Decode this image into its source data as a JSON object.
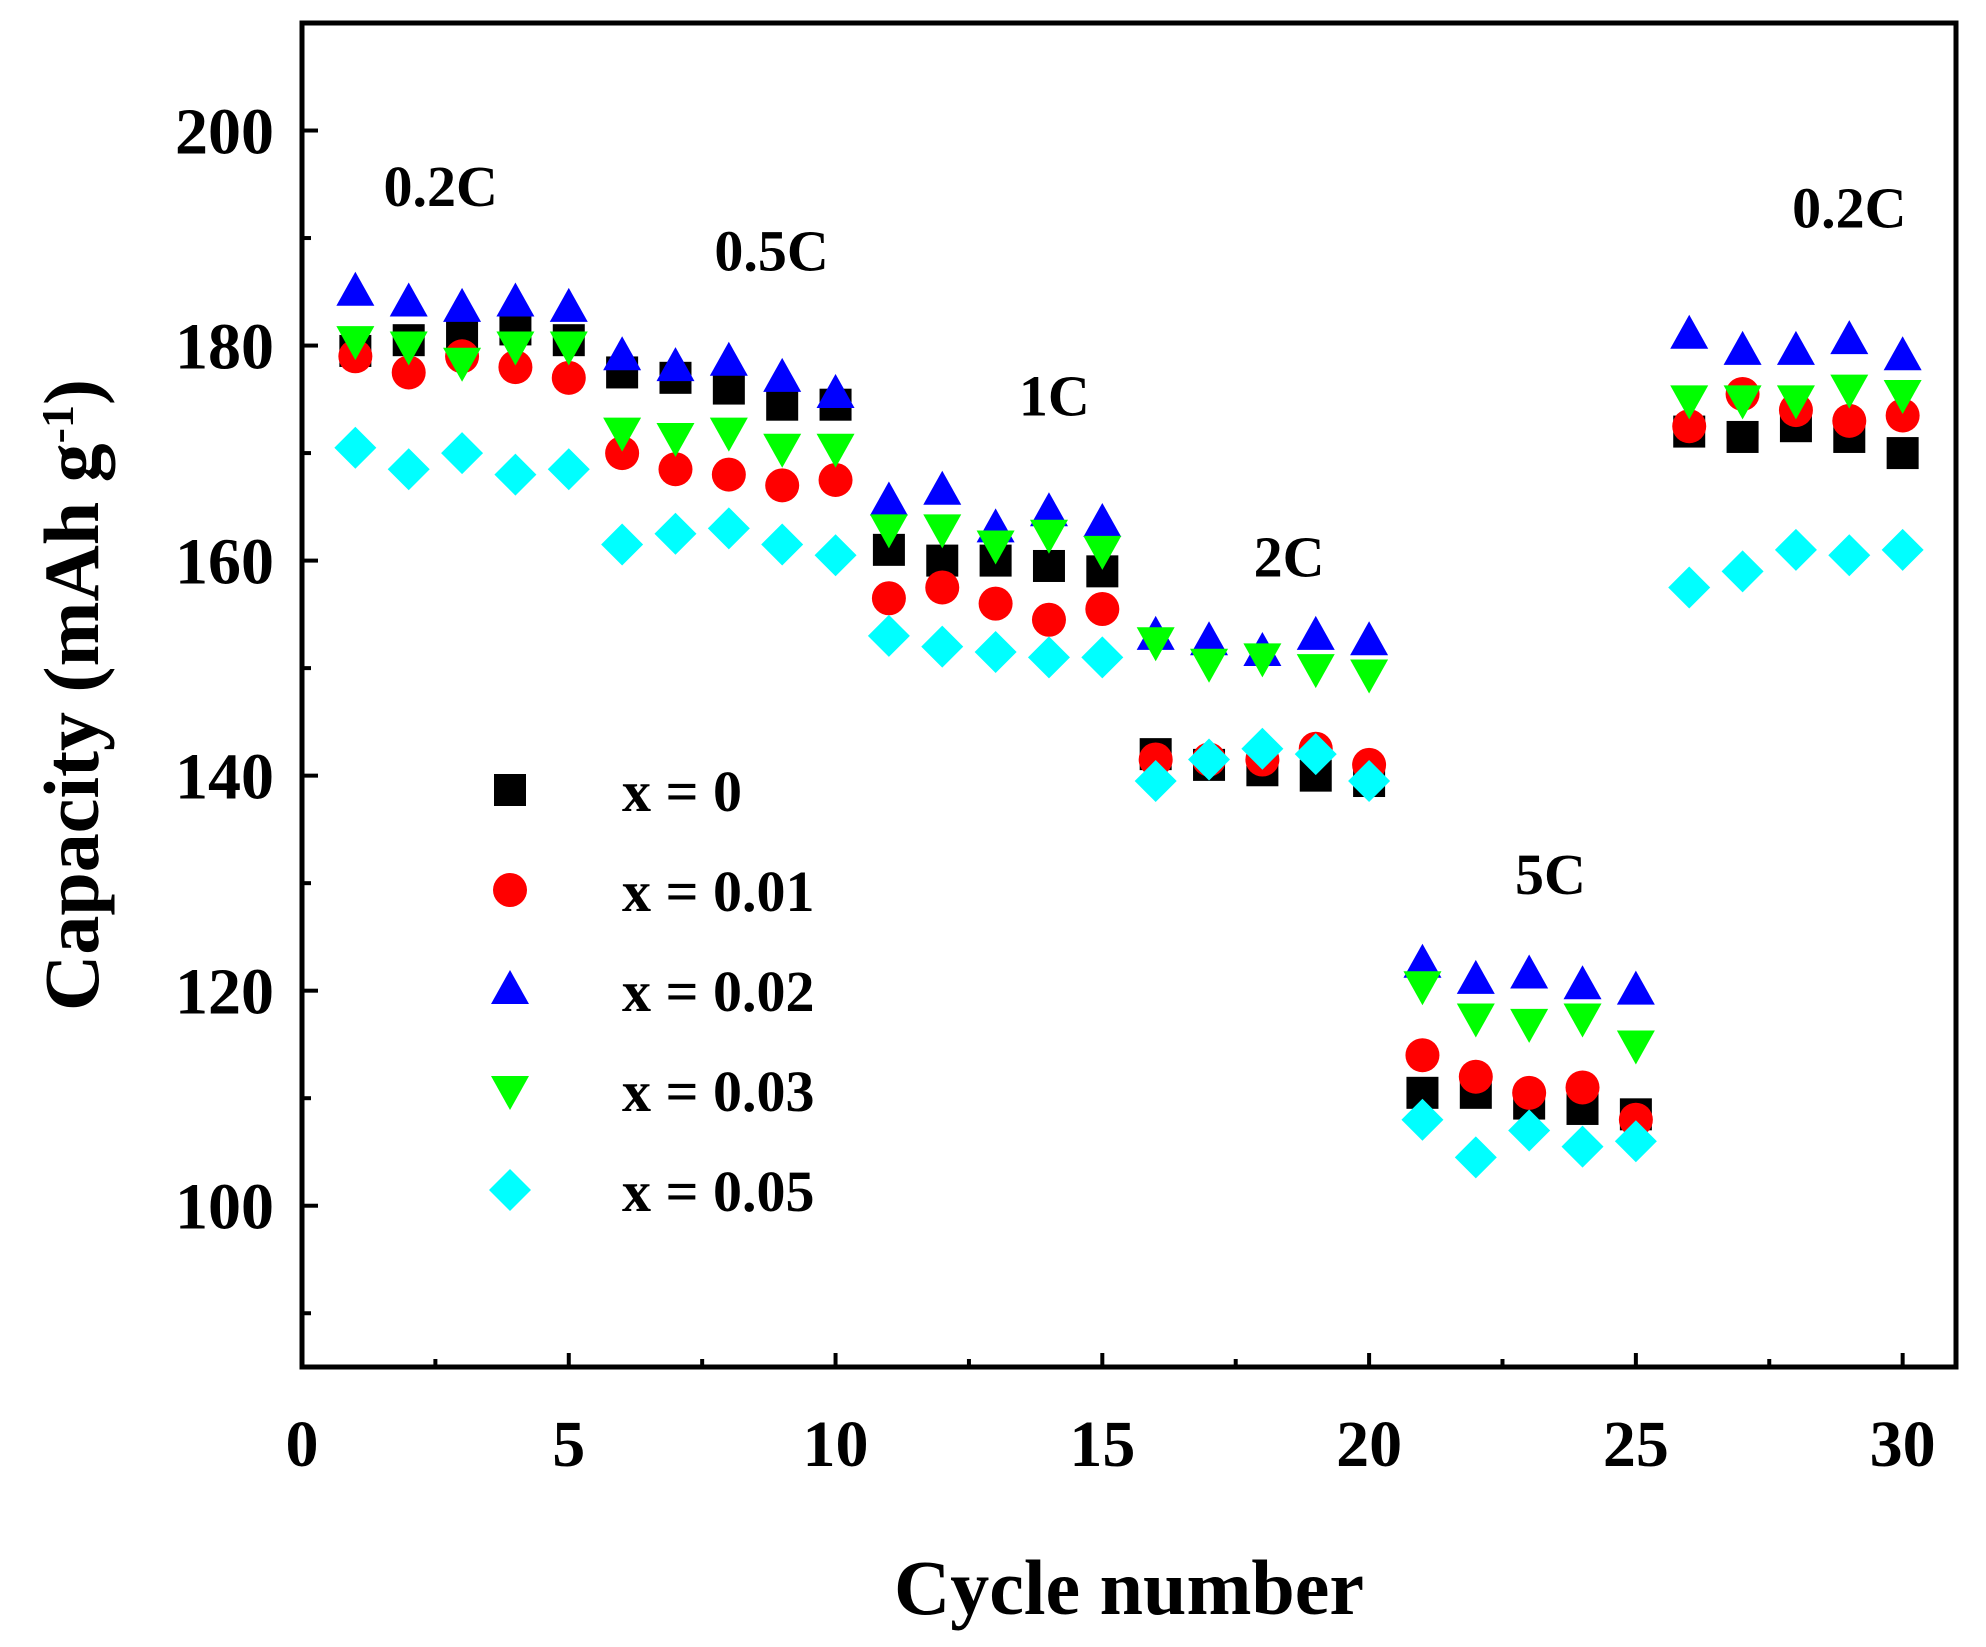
{
  "chart_data": {
    "type": "scatter",
    "title": "",
    "xlabel": "Cycle number",
    "ylabel": {
      "main": "Capacity (mAh g",
      "sup": "-1",
      "close": ")"
    },
    "xlim": [
      0,
      31
    ],
    "ylim": [
      85,
      210
    ],
    "xticks": [
      0,
      5,
      10,
      15,
      20,
      25,
      30
    ],
    "xtick_labels": [
      "0",
      "5",
      "10",
      "15",
      "20",
      "25",
      "30"
    ],
    "yticks": [
      100,
      120,
      140,
      160,
      180,
      200
    ],
    "ytick_labels": [
      "100",
      "120",
      "140",
      "160",
      "180",
      "200"
    ],
    "grid": false,
    "legend_position": "left-center",
    "x": [
      1,
      2,
      3,
      4,
      5,
      6,
      7,
      8,
      9,
      10,
      11,
      12,
      13,
      14,
      15,
      16,
      17,
      18,
      19,
      20,
      21,
      22,
      23,
      24,
      25,
      26,
      27,
      28,
      29,
      30
    ],
    "series": [
      {
        "name": "x = 0",
        "marker": "square",
        "color": "#000000",
        "values": [
          179.5,
          180.5,
          181,
          181.5,
          180.5,
          177.5,
          177,
          176,
          174.5,
          174.5,
          161,
          160,
          160,
          159.5,
          159,
          142,
          141,
          140.5,
          140,
          139.5,
          110.5,
          110.5,
          109.5,
          109,
          108.5,
          172,
          171.5,
          172.5,
          171.5,
          170
        ]
      },
      {
        "name": "x = 0.01",
        "marker": "circle",
        "color": "#ff0000",
        "values": [
          179,
          177.5,
          179,
          178,
          177,
          170,
          168.5,
          168,
          167,
          167.5,
          156.5,
          157.5,
          156,
          154.5,
          155.5,
          141.5,
          141.5,
          141.5,
          142.5,
          141,
          114,
          112,
          110.5,
          111,
          108,
          172.5,
          175.5,
          174,
          173,
          173.5
        ]
      },
      {
        "name": "x = 0.02",
        "marker": "triangle-up",
        "color": "#0000ff",
        "values": [
          185,
          184,
          183.5,
          184,
          183.5,
          179,
          178,
          178.5,
          177,
          175.5,
          165.5,
          166.5,
          163,
          164.5,
          163.5,
          153,
          152.5,
          151.5,
          153,
          152.5,
          122.5,
          121,
          121.5,
          120.5,
          120,
          181,
          179.5,
          179.5,
          180.5,
          179
        ]
      },
      {
        "name": "x = 0.03",
        "marker": "triangle-down",
        "color": "#00ff00",
        "values": [
          180.5,
          180,
          178.5,
          180,
          180,
          172,
          171.5,
          172,
          170.5,
          170.5,
          163,
          163,
          161.5,
          162.5,
          161,
          152.5,
          150.5,
          151,
          150,
          149.5,
          120.5,
          117.5,
          117,
          117.5,
          115,
          175,
          175,
          175,
          176,
          175.5
        ]
      },
      {
        "name": "x = 0.05",
        "marker": "diamond",
        "color": "#00ffff",
        "values": [
          170.5,
          168.5,
          170,
          168,
          168.5,
          161.5,
          162.5,
          163,
          161.5,
          160.5,
          153,
          152,
          151.5,
          151,
          151,
          139.5,
          141.5,
          142.5,
          142,
          139.5,
          108,
          104.5,
          107,
          105.5,
          106,
          157.5,
          159,
          161,
          160.5,
          161
        ]
      }
    ],
    "annotations": [
      {
        "text": "0.2C",
        "x": 2.6,
        "y": 193
      },
      {
        "text": "0.5C",
        "x": 8.8,
        "y": 187
      },
      {
        "text": "1C",
        "x": 14.1,
        "y": 173.5
      },
      {
        "text": "2C",
        "x": 18.5,
        "y": 158.5
      },
      {
        "text": "5C",
        "x": 23.4,
        "y": 129
      },
      {
        "text": "0.2C",
        "x": 29.0,
        "y": 191
      }
    ]
  }
}
